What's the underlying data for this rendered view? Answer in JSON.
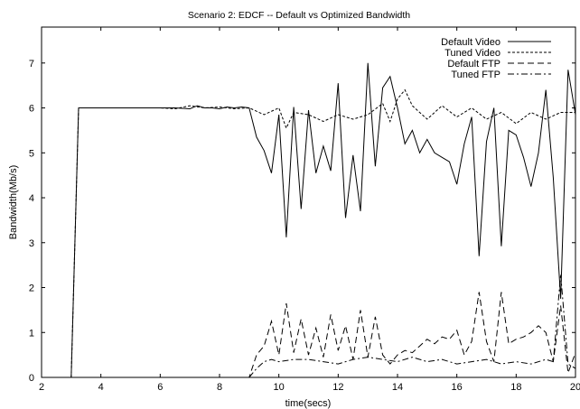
{
  "chart_data": {
    "type": "line",
    "title": "Scenario 2: EDCF -- Default vs Optimized Bandwidth",
    "xlabel": "time(secs)",
    "ylabel": "Bandwidth(Mb/s)",
    "xlim": [
      2,
      20
    ],
    "ylim": [
      0,
      7.8
    ],
    "xticks": [
      2,
      4,
      6,
      8,
      10,
      12,
      14,
      16,
      18,
      20
    ],
    "yticks": [
      0,
      1,
      2,
      3,
      4,
      5,
      6,
      7
    ],
    "xtick_labels": [
      "2",
      "4",
      "6",
      "8",
      "10",
      "12",
      "14",
      "16",
      "18",
      "20"
    ],
    "ytick_labels": [
      "0",
      "1",
      "2",
      "3",
      "4",
      "5",
      "6",
      "7"
    ],
    "grid": false,
    "legend_position": "top-right",
    "series": [
      {
        "name": "Default Video",
        "line_style": "solid",
        "x": [
          3.0,
          3.25,
          3.5,
          4.0,
          4.5,
          5.0,
          5.5,
          6.0,
          6.5,
          7.0,
          7.25,
          7.5,
          7.75,
          8.0,
          8.25,
          8.5,
          8.75,
          9.0,
          9.25,
          9.5,
          9.75,
          10.0,
          10.25,
          10.5,
          10.75,
          11.0,
          11.25,
          11.5,
          11.75,
          12.0,
          12.25,
          12.5,
          12.75,
          13.0,
          13.25,
          13.5,
          13.75,
          14.0,
          14.25,
          14.5,
          14.75,
          15.0,
          15.25,
          15.5,
          15.75,
          16.0,
          16.25,
          16.5,
          16.75,
          17.0,
          17.25,
          17.5,
          17.75,
          18.0,
          18.25,
          18.5,
          18.75,
          19.0,
          19.25,
          19.5,
          19.75,
          20.0
        ],
        "values": [
          0.0,
          6.0,
          6.0,
          6.0,
          6.0,
          6.0,
          6.0,
          6.0,
          6.0,
          5.98,
          6.05,
          6.0,
          6.0,
          5.98,
          6.02,
          6.0,
          6.02,
          6.0,
          5.35,
          5.05,
          4.55,
          5.85,
          3.12,
          6.02,
          3.75,
          5.95,
          4.55,
          5.15,
          4.6,
          6.55,
          3.55,
          4.95,
          3.7,
          7.0,
          4.7,
          6.45,
          6.7,
          6.0,
          5.2,
          5.5,
          5.0,
          5.3,
          5.0,
          4.9,
          4.8,
          4.3,
          5.2,
          5.8,
          2.7,
          5.25,
          6.0,
          2.92,
          5.5,
          5.4,
          4.9,
          4.25,
          5.0,
          6.4,
          4.45,
          1.75,
          6.85,
          5.85
        ]
      },
      {
        "name": "Tuned Video",
        "line_style": "dotted",
        "x": [
          3.0,
          3.25,
          4.0,
          5.0,
          6.0,
          6.5,
          7.0,
          7.5,
          8.0,
          8.5,
          9.0,
          9.5,
          10.0,
          10.25,
          10.5,
          11.0,
          11.5,
          12.0,
          12.5,
          13.0,
          13.5,
          13.75,
          14.0,
          14.25,
          14.5,
          15.0,
          15.5,
          16.0,
          16.5,
          17.0,
          17.5,
          18.0,
          18.5,
          19.0,
          19.5,
          20.0
        ],
        "values": [
          0.0,
          6.0,
          6.0,
          6.0,
          6.0,
          5.98,
          6.05,
          6.0,
          6.02,
          5.98,
          6.0,
          5.85,
          6.0,
          5.55,
          5.9,
          5.85,
          5.7,
          5.85,
          5.75,
          5.85,
          6.1,
          5.7,
          6.2,
          6.4,
          6.05,
          5.75,
          6.05,
          5.8,
          6.0,
          5.75,
          5.9,
          5.65,
          5.9,
          5.75,
          5.9,
          5.9
        ]
      },
      {
        "name": "Default FTP",
        "line_style": "dashed",
        "x": [
          8.9,
          9.0,
          9.25,
          9.5,
          9.75,
          10.0,
          10.25,
          10.5,
          10.75,
          11.0,
          11.25,
          11.5,
          11.75,
          12.0,
          12.25,
          12.5,
          12.75,
          13.0,
          13.25,
          13.5,
          13.75,
          14.0,
          14.25,
          14.5,
          14.75,
          15.0,
          15.25,
          15.5,
          15.75,
          16.0,
          16.25,
          16.5,
          16.75,
          17.0,
          17.25,
          17.5,
          17.75,
          18.0,
          18.25,
          18.5,
          18.75,
          19.0,
          19.25,
          19.5,
          19.75,
          20.0
        ],
        "values": [
          0.0,
          0.0,
          0.5,
          0.7,
          1.25,
          0.5,
          1.65,
          0.55,
          1.3,
          0.5,
          1.1,
          0.45,
          1.4,
          0.6,
          1.15,
          0.4,
          1.5,
          0.45,
          1.35,
          0.5,
          0.3,
          0.5,
          0.6,
          0.55,
          0.7,
          0.85,
          0.75,
          0.9,
          0.85,
          1.05,
          0.5,
          0.8,
          1.9,
          0.8,
          0.35,
          1.9,
          0.75,
          0.85,
          0.9,
          1.0,
          1.15,
          1.0,
          0.35,
          1.6,
          0.1,
          0.55
        ]
      },
      {
        "name": "Tuned FTP",
        "line_style": "dash-dot",
        "x": [
          9.0,
          9.25,
          9.5,
          9.75,
          10.0,
          10.5,
          11.0,
          11.5,
          12.0,
          12.5,
          13.0,
          13.5,
          14.0,
          14.5,
          15.0,
          15.5,
          16.0,
          16.5,
          17.0,
          17.5,
          18.0,
          18.5,
          19.0,
          19.25,
          19.5,
          19.75,
          20.0
        ],
        "values": [
          0.0,
          0.2,
          0.35,
          0.4,
          0.35,
          0.4,
          0.4,
          0.35,
          0.3,
          0.4,
          0.45,
          0.4,
          0.35,
          0.45,
          0.35,
          0.4,
          0.3,
          0.35,
          0.4,
          0.3,
          0.35,
          0.3,
          0.4,
          0.35,
          2.3,
          0.3,
          0.2
        ]
      }
    ]
  }
}
